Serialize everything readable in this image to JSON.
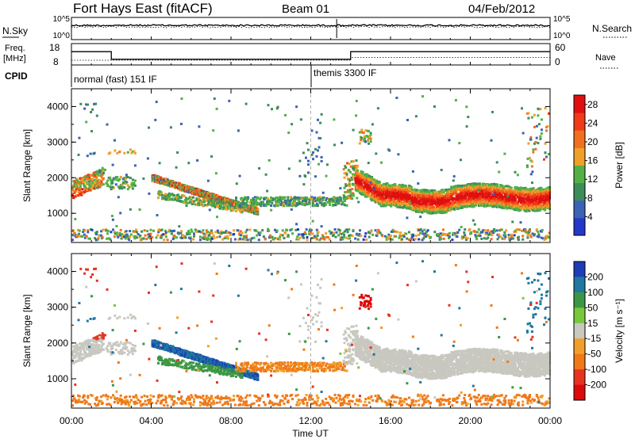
{
  "header": {
    "title": "Fort Hays East (fitACF)",
    "beam": "Beam 01",
    "date": "04/Feb/2012"
  },
  "param_panel": {
    "nsky_label": "N.Sky",
    "nsearch_label": "N.Search",
    "noise_tick_top": "10^5",
    "noise_tick_bottom": "10^0",
    "freq_label_1": "Freq.",
    "freq_label_2": "[MHz]",
    "freq_ticks": [
      "18",
      "8"
    ],
    "nave_label": "Nave",
    "nave_ticks": [
      "60",
      "0"
    ],
    "cpid_label": "CPID",
    "cpid_segments": [
      {
        "label": "normal (fast) 151 IF"
      },
      {
        "label": "themis 3300 IF"
      }
    ]
  },
  "chart_data": [
    {
      "type": "heatmap",
      "title": "",
      "xlabel": "Time UT",
      "ylabel": "Slant Range [km]",
      "xticks": [
        "00:00",
        "04:00",
        "08:00",
        "12:00",
        "16:00",
        "20:00",
        "00:00"
      ],
      "xlim_hours": [
        0,
        24
      ],
      "yticks": [
        "1000",
        "2000",
        "3000",
        "4000"
      ],
      "ylim": [
        180,
        4500
      ],
      "colorbar": {
        "label": "Power [dB]",
        "ticks": [
          "4",
          "8",
          "12",
          "16",
          "20",
          "24",
          "28"
        ],
        "range": [
          0,
          30
        ],
        "colors": [
          "#2338c8",
          "#3c62b4",
          "#3c8c5a",
          "#52b046",
          "#f0a028",
          "#f07020",
          "#f03a18",
          "#e01010"
        ]
      }
    },
    {
      "type": "heatmap",
      "title": "",
      "xlabel": "Time UT",
      "ylabel": "Slant Range [km]",
      "xticks": [
        "00:00",
        "04:00",
        "08:00",
        "12:00",
        "16:00",
        "20:00",
        "00:00"
      ],
      "xlim_hours": [
        0,
        24
      ],
      "yticks": [
        "1000",
        "2000",
        "3000",
        "4000"
      ],
      "ylim": [
        180,
        4500
      ],
      "colorbar": {
        "label": "Velocity [m s⁻¹]",
        "ticks": [
          "200",
          "100",
          "50",
          "15",
          "-15",
          "-50",
          "-100",
          "-200"
        ],
        "colors": [
          "#1e3cb4",
          "#1e78a0",
          "#3c9646",
          "#78c83c",
          "#c8c8c0",
          "#f0a028",
          "#f07818",
          "#e83220",
          "#dc0a0a"
        ]
      }
    }
  ],
  "colors": {
    "frame": "#000000",
    "separator": "#b0b0b0"
  }
}
